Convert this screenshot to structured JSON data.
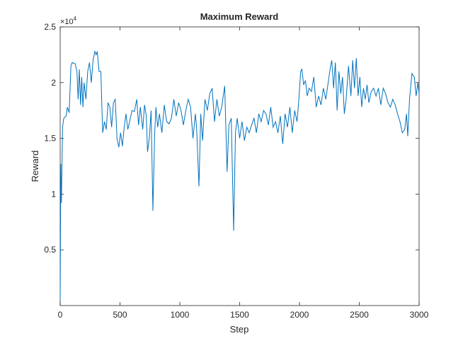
{
  "chart_data": {
    "type": "line",
    "title": "Maximum Reward",
    "x_label": "Step",
    "y_label": "Reward",
    "y_exponent": {
      "base": "×10",
      "power": "4"
    },
    "xlim": [
      0,
      3000
    ],
    "xticks": [
      0,
      500,
      1000,
      1500,
      2000,
      2500,
      3000
    ],
    "ylim": [
      0,
      2.5
    ],
    "yticks": [
      0.5,
      1,
      1.5,
      2,
      2.5
    ],
    "grid": false,
    "series": [
      {
        "color": "#0072bd",
        "x": [
          0,
          5,
          10,
          20,
          30,
          50,
          60,
          75,
          90,
          100,
          125,
          140,
          150,
          160,
          170,
          180,
          190,
          200,
          215,
          230,
          245,
          260,
          275,
          290,
          300,
          310,
          325,
          340,
          355,
          370,
          385,
          400,
          415,
          430,
          445,
          460,
          475,
          490,
          505,
          520,
          535,
          550,
          565,
          580,
          600,
          620,
          640,
          655,
          670,
          690,
          705,
          720,
          730,
          745,
          760,
          775,
          790,
          800,
          815,
          830,
          850,
          870,
          890,
          910,
          930,
          950,
          970,
          990,
          1010,
          1030,
          1050,
          1070,
          1090,
          1110,
          1130,
          1140,
          1160,
          1175,
          1190,
          1210,
          1230,
          1250,
          1270,
          1290,
          1310,
          1330,
          1350,
          1375,
          1395,
          1410,
          1430,
          1450,
          1465,
          1480,
          1500,
          1520,
          1540,
          1560,
          1580,
          1600,
          1620,
          1640,
          1660,
          1680,
          1700,
          1720,
          1740,
          1760,
          1780,
          1800,
          1820,
          1840,
          1860,
          1880,
          1900,
          1920,
          1940,
          1960,
          1980,
          1995,
          2010,
          2020,
          2035,
          2050,
          2065,
          2080,
          2100,
          2120,
          2140,
          2160,
          2180,
          2200,
          2220,
          2240,
          2260,
          2270,
          2285,
          2300,
          2315,
          2330,
          2345,
          2360,
          2375,
          2390,
          2410,
          2430,
          2445,
          2460,
          2475,
          2490,
          2505,
          2520,
          2535,
          2550,
          2565,
          2580,
          2600,
          2620,
          2640,
          2660,
          2680,
          2700,
          2720,
          2740,
          2760,
          2780,
          2800,
          2820,
          2840,
          2860,
          2880,
          2895,
          2905,
          2920,
          2940,
          2960,
          2975,
          2990,
          3000
        ],
        "values": [
          0.05,
          1.27,
          0.92,
          1.6,
          1.68,
          1.7,
          1.78,
          1.73,
          2.15,
          2.18,
          2.17,
          2.1,
          1.85,
          2.12,
          1.8,
          2.05,
          1.78,
          2.0,
          1.85,
          2.1,
          2.18,
          2.0,
          2.2,
          2.28,
          2.25,
          2.28,
          2.1,
          2.1,
          1.55,
          1.65,
          1.58,
          1.82,
          1.78,
          1.6,
          1.82,
          1.85,
          1.5,
          1.42,
          1.55,
          1.43,
          1.6,
          1.72,
          1.58,
          1.65,
          1.75,
          1.74,
          1.85,
          1.62,
          1.78,
          1.58,
          1.8,
          1.7,
          1.38,
          1.5,
          1.75,
          0.85,
          1.55,
          1.78,
          1.6,
          1.72,
          1.55,
          1.8,
          1.65,
          1.63,
          1.68,
          1.85,
          1.7,
          1.82,
          1.75,
          1.62,
          1.75,
          1.85,
          1.78,
          1.5,
          1.72,
          1.6,
          1.07,
          1.72,
          1.48,
          1.85,
          1.75,
          1.9,
          1.95,
          1.65,
          1.85,
          1.7,
          1.78,
          1.97,
          1.2,
          1.62,
          1.68,
          0.67,
          1.55,
          1.68,
          1.5,
          1.65,
          1.48,
          1.6,
          1.55,
          1.62,
          1.68,
          1.55,
          1.72,
          1.65,
          1.75,
          1.72,
          1.62,
          1.78,
          1.6,
          1.65,
          1.55,
          1.7,
          1.45,
          1.72,
          1.6,
          1.78,
          1.55,
          1.75,
          1.65,
          1.85,
          2.1,
          2.12,
          1.98,
          2.02,
          1.88,
          1.95,
          1.92,
          2.05,
          1.78,
          1.88,
          1.8,
          1.95,
          1.85,
          2.0,
          2.15,
          2.2,
          1.95,
          2.18,
          1.75,
          2.1,
          1.9,
          2.05,
          1.72,
          1.85,
          2.15,
          1.88,
          2.2,
          1.95,
          2.22,
          1.88,
          2.05,
          1.78,
          1.95,
          1.85,
          1.98,
          1.82,
          1.92,
          1.95,
          1.88,
          1.95,
          1.8,
          1.95,
          1.9,
          1.82,
          1.78,
          1.85,
          1.8,
          1.72,
          1.65,
          1.55,
          1.58,
          1.72,
          1.52,
          1.85,
          2.08,
          2.05,
          1.88,
          2.0,
          1.9
        ]
      }
    ]
  }
}
